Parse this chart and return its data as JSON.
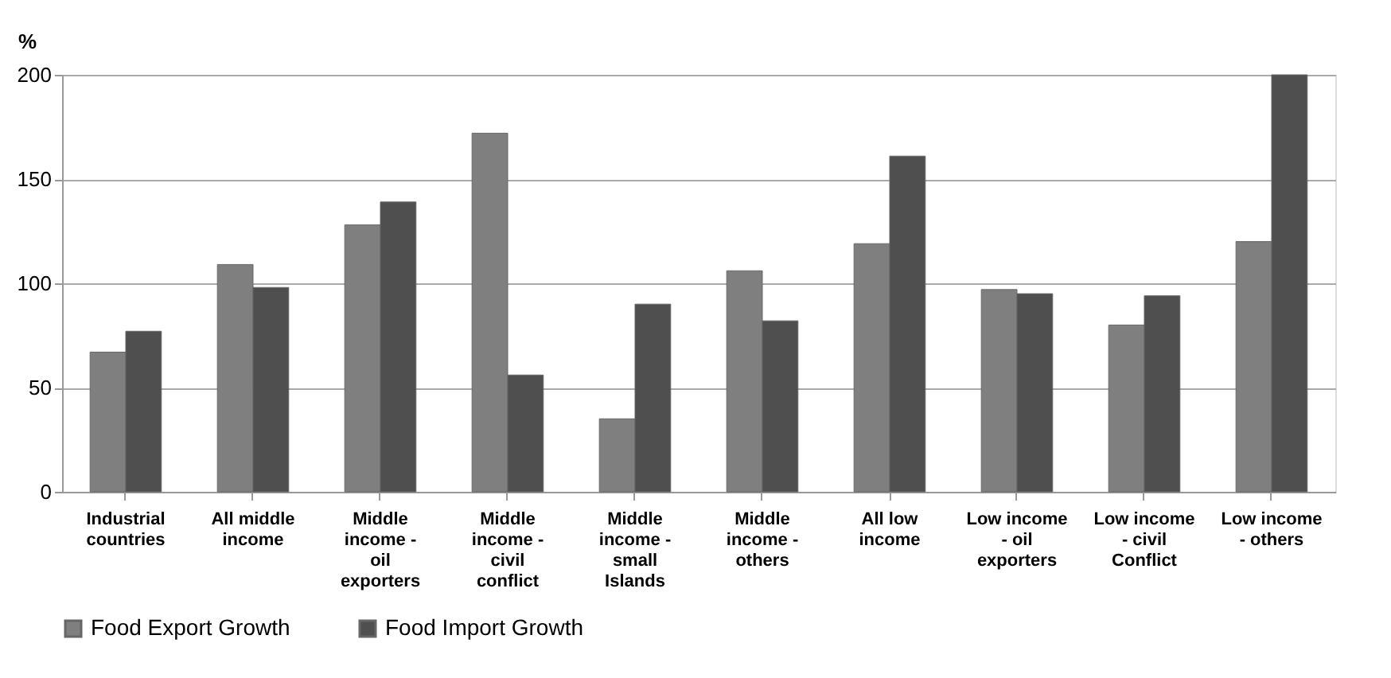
{
  "chart_data": {
    "type": "bar",
    "ylabel": "%",
    "categories": [
      "Industrial countries",
      "All middle income",
      "Middle income - oil exporters",
      "Middle income - civil conflict",
      "Middle income - small Islands",
      "Middle income - others",
      "All low income",
      "Low income - oil exporters",
      "Low income - civil Conflict",
      "Low income - others"
    ],
    "series": [
      {
        "name": "Food Export Growth",
        "color": "#7f7f7f",
        "values": [
          67,
          109,
          128,
          172,
          35,
          106,
          119,
          97,
          80,
          120
        ]
      },
      {
        "name": "Food Import Growth",
        "color": "#4f4f4f",
        "values": [
          77,
          98,
          139,
          56,
          90,
          82,
          161,
          95,
          94,
          200
        ]
      }
    ],
    "ylim": [
      0,
      200
    ],
    "yticks": [
      0,
      50,
      100,
      150,
      200
    ],
    "grid": "y",
    "legend": "bottom"
  }
}
